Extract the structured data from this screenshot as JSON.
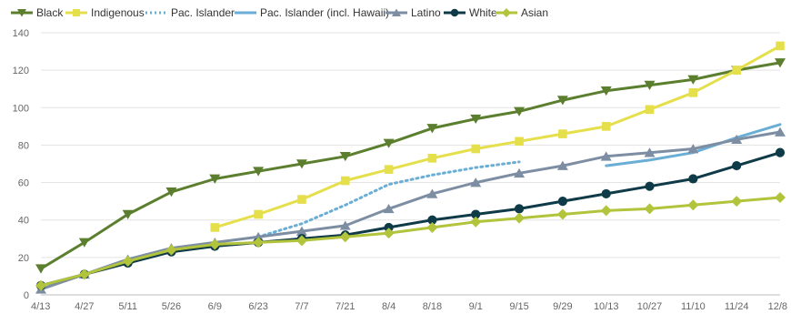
{
  "chart_data": {
    "type": "line",
    "title": "",
    "xlabel": "",
    "ylabel": "",
    "ylim": [
      0,
      140
    ],
    "yticks": [
      0,
      20,
      40,
      60,
      80,
      100,
      120,
      140
    ],
    "grid": true,
    "legend_position": "top-left",
    "categories": [
      "4/13",
      "4/27",
      "5/11",
      "5/26",
      "6/9",
      "6/23",
      "7/7",
      "7/21",
      "8/4",
      "8/18",
      "9/1",
      "9/15",
      "9/29",
      "10/13",
      "10/27",
      "11/10",
      "11/24",
      "12/8"
    ],
    "series": [
      {
        "name": "Black",
        "color": "#5b7f2e",
        "marker": "triangle-down",
        "style": "solid",
        "values": [
          14,
          28,
          43,
          55,
          62,
          66,
          70,
          74,
          81,
          89,
          94,
          98,
          104,
          109,
          112,
          115,
          120,
          124
        ]
      },
      {
        "name": "Indigenous",
        "color": "#e4df4a",
        "marker": "square",
        "style": "solid",
        "values": [
          null,
          null,
          null,
          null,
          36,
          43,
          51,
          61,
          67,
          73,
          78,
          82,
          86,
          90,
          99,
          108,
          120,
          133
        ]
      },
      {
        "name": "Pac. Islander",
        "color": "#6aaed6",
        "marker": "none",
        "style": "dotted",
        "values": [
          null,
          null,
          null,
          null,
          null,
          31,
          38,
          48,
          59,
          64,
          68,
          71,
          null,
          null,
          null,
          null,
          null,
          null
        ]
      },
      {
        "name": "Pac. Islander (incl. Hawaii)",
        "color": "#6aaed6",
        "marker": "none",
        "style": "solid",
        "values": [
          null,
          null,
          null,
          null,
          null,
          null,
          null,
          null,
          null,
          null,
          null,
          null,
          null,
          69,
          72,
          76,
          84,
          91
        ]
      },
      {
        "name": "Latino",
        "color": "#7d8ea3",
        "marker": "triangle-up",
        "style": "solid",
        "values": [
          3,
          11,
          19,
          25,
          28,
          31,
          34,
          37,
          46,
          54,
          60,
          65,
          69,
          74,
          76,
          78,
          83,
          87
        ]
      },
      {
        "name": "White",
        "color": "#0f3a47",
        "marker": "circle",
        "style": "solid",
        "values": [
          5,
          11,
          17,
          23,
          26,
          28,
          30,
          32,
          36,
          40,
          43,
          46,
          50,
          54,
          58,
          62,
          69,
          76
        ]
      },
      {
        "name": "Asian",
        "color": "#b2c33c",
        "marker": "diamond",
        "style": "solid",
        "values": [
          5,
          11,
          18,
          24,
          27,
          28,
          29,
          31,
          33,
          36,
          39,
          41,
          43,
          45,
          46,
          48,
          50,
          52
        ]
      }
    ]
  }
}
